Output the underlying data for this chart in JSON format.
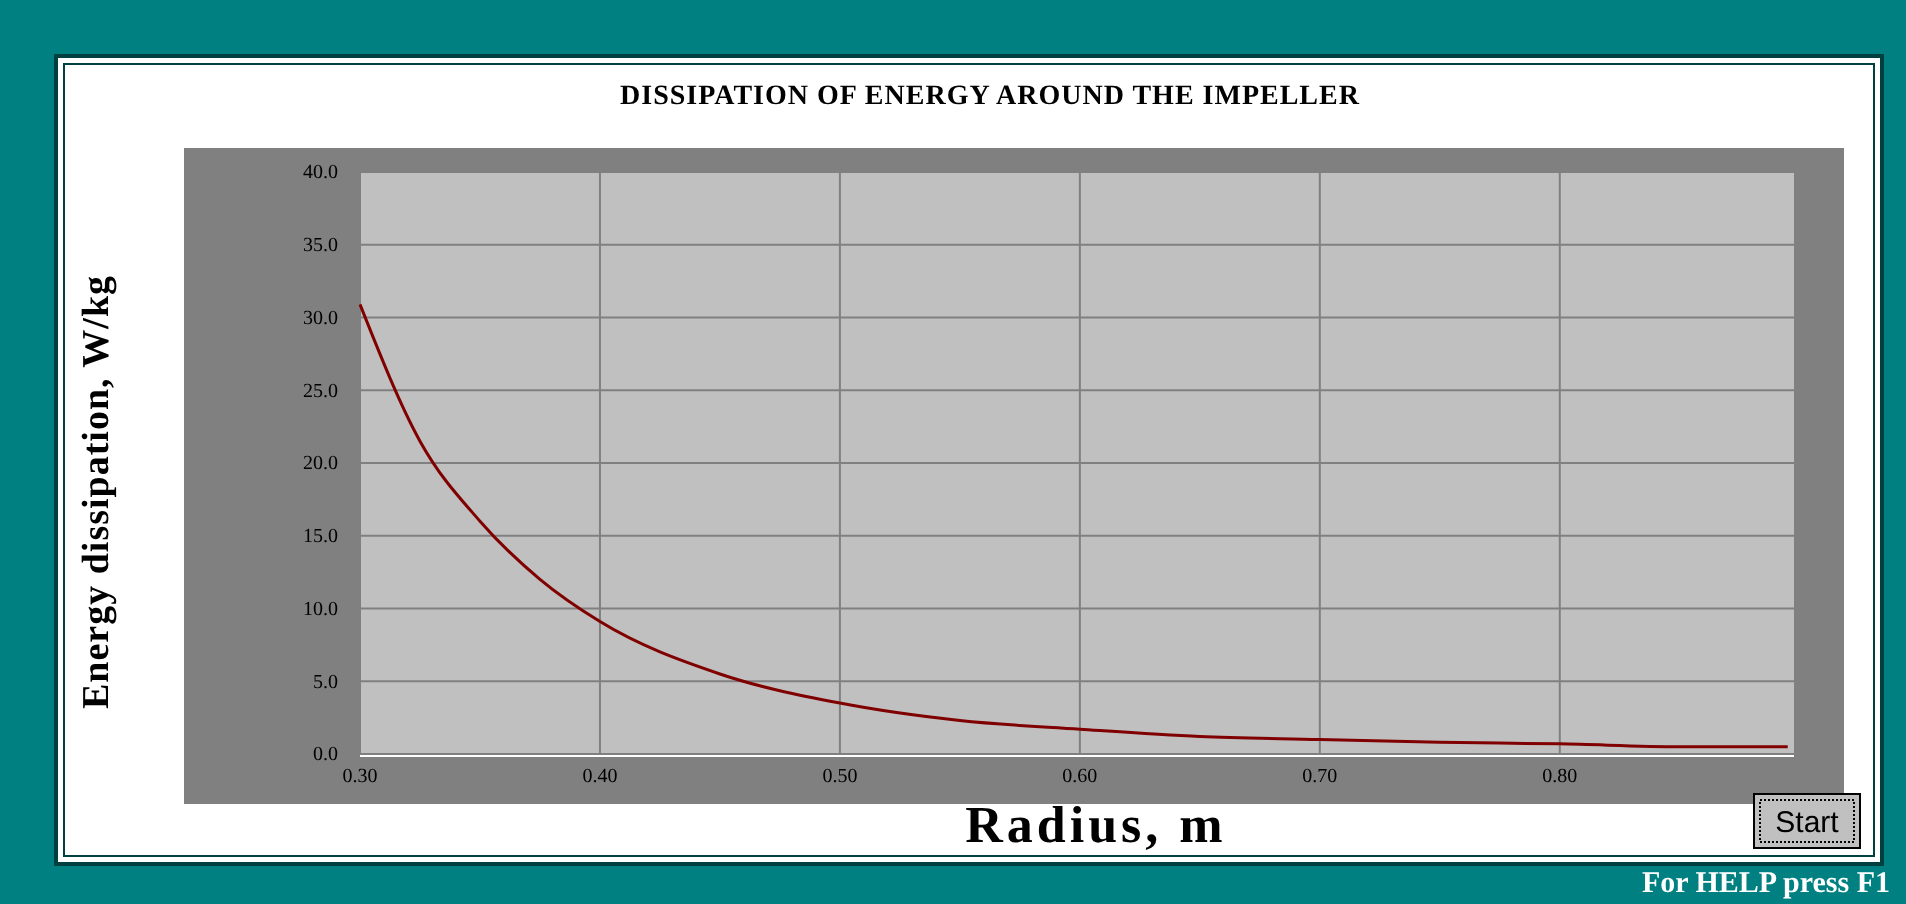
{
  "chart_data": {
    "type": "line",
    "title": "DISSIPATION OF ENERGY AROUND THE IMPELLER",
    "xlabel": "Radius, m",
    "ylabel": "Energy dissipation, W/kg",
    "x": [
      0.3,
      0.325,
      0.35,
      0.375,
      0.4,
      0.45,
      0.5,
      0.55,
      0.6,
      0.65,
      0.7,
      0.75,
      0.8,
      0.85,
      0.895
    ],
    "series": [
      {
        "color": "#800000",
        "values": [
          30.9,
          21.5,
          16.0,
          12.0,
          9.1,
          5.5,
          3.5,
          2.3,
          1.7,
          1.2,
          1.0,
          0.8,
          0.7,
          0.5,
          0.5
        ]
      }
    ],
    "xlim": [
      0.3,
      0.9
    ],
    "ylim": [
      0,
      40
    ],
    "xticks": [
      {
        "value": 0.3,
        "label": "0.30"
      },
      {
        "value": 0.4,
        "label": "0.40"
      },
      {
        "value": 0.5,
        "label": "0.50"
      },
      {
        "value": 0.6,
        "label": "0.60"
      },
      {
        "value": 0.7,
        "label": "0.70"
      },
      {
        "value": 0.8,
        "label": "0.80"
      }
    ],
    "yticks": [
      {
        "value": 0,
        "label": "0.0"
      },
      {
        "value": 5,
        "label": "5.0"
      },
      {
        "value": 10,
        "label": "10.0"
      },
      {
        "value": 15,
        "label": "15.0"
      },
      {
        "value": 20,
        "label": "20.0"
      },
      {
        "value": 25,
        "label": "25.0"
      },
      {
        "value": 30,
        "label": "30.0"
      },
      {
        "value": 35,
        "label": "35.0"
      },
      {
        "value": 40,
        "label": "40.0"
      }
    ],
    "grid": true,
    "marker": "none",
    "line_style": "solid",
    "annotations": [
      "Start",
      "For HELP press F1"
    ]
  }
}
